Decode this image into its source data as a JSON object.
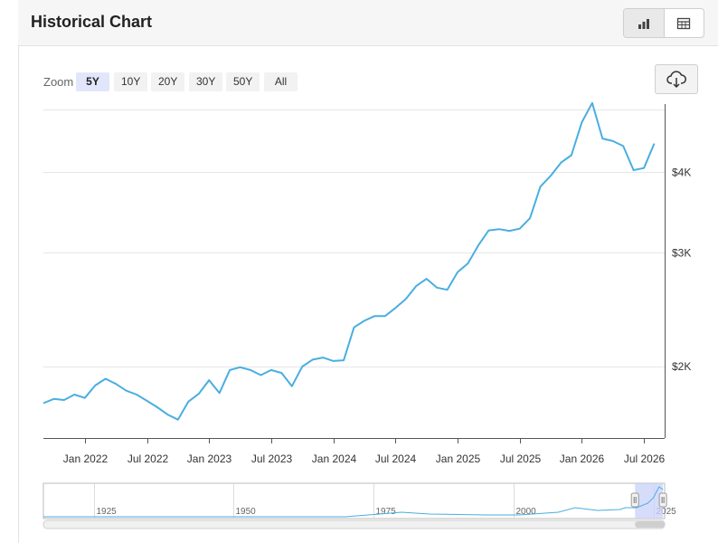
{
  "title": "Historical Chart",
  "toolbar": {
    "chart_view_icon": "bar-chart-icon",
    "table_view_icon": "table-icon",
    "download_icon": "cloud-download-icon"
  },
  "zoom": {
    "label": "Zoom",
    "options": [
      "5Y",
      "10Y",
      "20Y",
      "30Y",
      "50Y",
      "All"
    ],
    "selected": "5Y"
  },
  "colors": {
    "line": "#4aaee0",
    "grid": "#e6e6e6",
    "navigator_mask": "#c8d2fa"
  },
  "chart_data": {
    "type": "line",
    "y_scale": "log",
    "x_tick_labels": [
      "Jan 2022",
      "Jul 2022",
      "Jan 2023",
      "Jul 2023",
      "Jan 2024",
      "Jul 2024",
      "Jan 2025",
      "Jul 2025",
      "Jan 2026",
      "Jul 2026"
    ],
    "y_tick_labels": [
      "$2K",
      "$3K",
      "$4K"
    ],
    "y_ticks": [
      2000,
      3000,
      4000
    ],
    "ylim": [
      1550,
      5100
    ],
    "grid": true,
    "series": [
      {
        "x": [
          "2021-09",
          "2021-10",
          "2021-11",
          "2021-12",
          "2022-01",
          "2022-02",
          "2022-03",
          "2022-04",
          "2022-05",
          "2022-06",
          "2022-07",
          "2022-08",
          "2022-09",
          "2022-10",
          "2022-11",
          "2022-12",
          "2023-01",
          "2023-02",
          "2023-03",
          "2023-04",
          "2023-05",
          "2023-06",
          "2023-07",
          "2023-08",
          "2023-09",
          "2023-10",
          "2023-11",
          "2023-12",
          "2024-01",
          "2024-02",
          "2024-03",
          "2024-04",
          "2024-05",
          "2024-06",
          "2024-07",
          "2024-08",
          "2024-09",
          "2024-10",
          "2024-11",
          "2024-12",
          "2025-01",
          "2025-02",
          "2025-03",
          "2025-04",
          "2025-05",
          "2025-06",
          "2025-07",
          "2025-08",
          "2025-09",
          "2025-10",
          "2025-11",
          "2025-12",
          "2026-01",
          "2026-02",
          "2026-03",
          "2026-04",
          "2026-05",
          "2026-06",
          "2026-07",
          "2026-08"
        ],
        "values": [
          1755,
          1782,
          1775,
          1810,
          1788,
          1870,
          1915,
          1880,
          1835,
          1810,
          1770,
          1730,
          1685,
          1655,
          1765,
          1815,
          1905,
          1820,
          1975,
          1995,
          1975,
          1940,
          1975,
          1955,
          1865,
          2000,
          2050,
          2065,
          2040,
          2045,
          2300,
          2355,
          2395,
          2395,
          2465,
          2545,
          2665,
          2735,
          2650,
          2630,
          2800,
          2890,
          3080,
          3250,
          3265,
          3245,
          3270,
          3395,
          3800,
          3950,
          4140,
          4250,
          4780,
          5120,
          4510,
          4470,
          4390,
          4030,
          4060,
          4430
        ]
      }
    ],
    "navigator": {
      "tick_labels": [
        "1925",
        "1950",
        "1975",
        "2000",
        "2025"
      ]
    }
  }
}
